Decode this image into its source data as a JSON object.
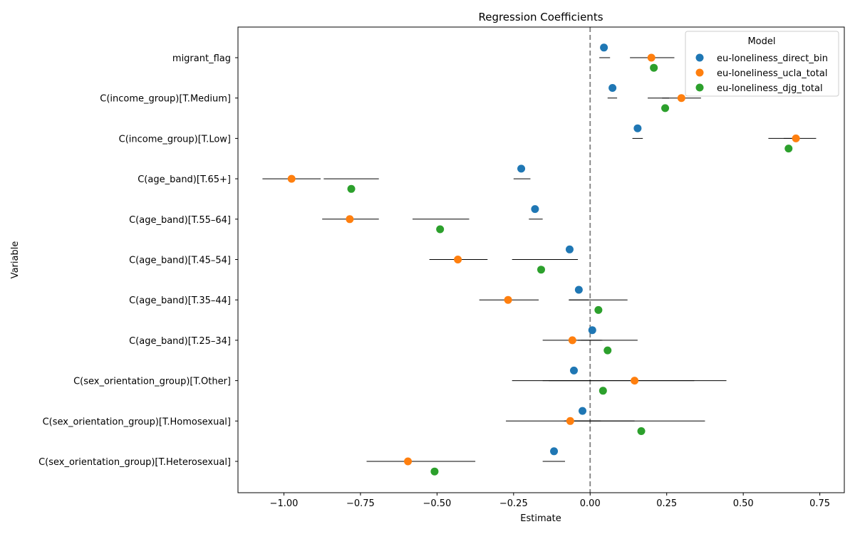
{
  "chart_data": {
    "type": "scatter",
    "title": "Regression Coefficients",
    "xlabel": "Estimate",
    "ylabel": "Variable",
    "xlim": [
      -1.15,
      0.83
    ],
    "xticks": [
      -1.0,
      -0.75,
      -0.5,
      -0.25,
      0.0,
      0.25,
      0.5,
      0.75
    ],
    "xtick_labels": [
      "−1.00",
      "−0.75",
      "−0.50",
      "−0.25",
      "0.00",
      "0.25",
      "0.50",
      "0.75"
    ],
    "reference_line": 0.0,
    "grid": false,
    "legend_title": "Model",
    "legend_position": "top-right",
    "categories": [
      "migrant_flag",
      "C(income_group)[T.Medium]",
      "C(income_group)[T.Low]",
      "C(age_band)[T.65+]",
      "C(age_band)[T.55–64]",
      "C(age_band)[T.45–54]",
      "C(age_band)[T.35–44]",
      "C(age_band)[T.25–34]",
      "C(sex_orientation_group)[T.Other]",
      "C(sex_orientation_group)[T.Homosexual]",
      "C(sex_orientation_group)[T.Heterosexual]"
    ],
    "series": [
      {
        "name": "eu-loneliness_direct_bin",
        "color": "#1f77b4",
        "values": [
          0.045,
          0.073,
          0.155,
          -0.225,
          -0.18,
          -0.067,
          -0.037,
          0.007,
          -0.053,
          -0.025,
          -0.118
        ],
        "ci_low": [
          0.03,
          0.057,
          0.138,
          -0.25,
          -0.2,
          -0.09,
          -0.07,
          -0.03,
          -0.135,
          -0.085,
          -0.155
        ],
        "ci_high": [
          0.065,
          0.088,
          0.172,
          -0.195,
          -0.155,
          -0.04,
          -0.005,
          0.04,
          0.045,
          0.035,
          -0.082
        ]
      },
      {
        "name": "eu-loneliness_ucla_total",
        "color": "#ff7f0e",
        "values": [
          0.2,
          0.298,
          0.672,
          -0.975,
          -0.785,
          -0.432,
          -0.268,
          -0.058,
          0.145,
          -0.065,
          -0.595
        ],
        "ci_low": [
          0.13,
          0.188,
          0.582,
          -1.07,
          -0.875,
          -0.525,
          -0.362,
          -0.155,
          -0.155,
          -0.275,
          -0.73
        ],
        "ci_high": [
          0.275,
          0.362,
          0.738,
          -0.88,
          -0.69,
          -0.335,
          -0.168,
          0.035,
          0.445,
          0.145,
          -0.455
        ]
      },
      {
        "name": "eu-loneliness_djg_total",
        "color": "#2ca02c",
        "values": [
          0.208,
          0.245,
          0.648,
          -0.78,
          -0.49,
          -0.16,
          0.027,
          0.057,
          0.042,
          0.167,
          -0.508
        ],
        "ci_low": [
          0.15,
          0.235,
          0.632,
          -0.87,
          -0.58,
          -0.255,
          -0.068,
          -0.04,
          -0.255,
          -0.08,
          -0.64
        ],
        "ci_high": [
          0.265,
          0.258,
          0.665,
          -0.69,
          -0.395,
          -0.065,
          0.122,
          0.155,
          0.34,
          0.375,
          -0.375
        ]
      }
    ]
  }
}
